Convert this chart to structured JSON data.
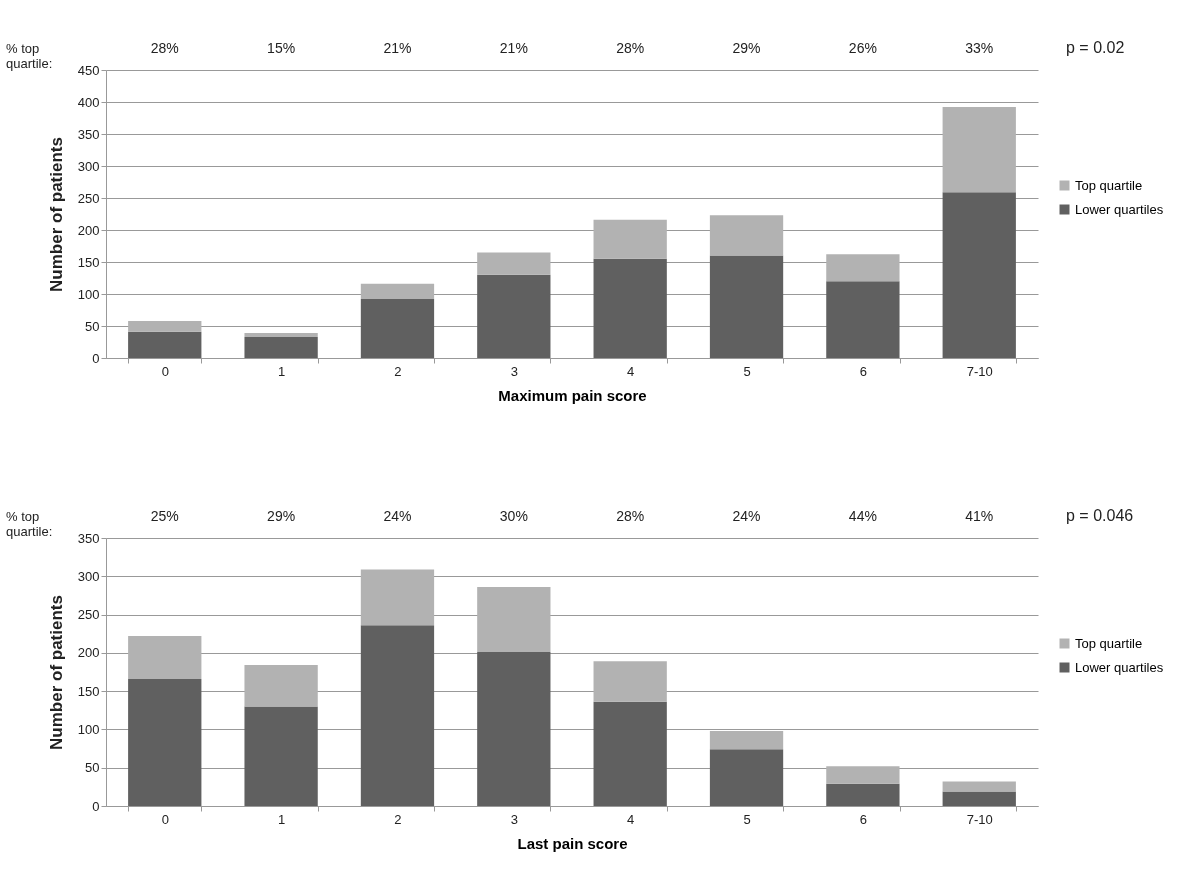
{
  "chart_data": [
    {
      "type": "bar",
      "stacked": true,
      "xlabel": "Maximum pain score",
      "ylabel": "Number of patients",
      "categories": [
        "0",
        "1",
        "2",
        "3",
        "4",
        "5",
        "6",
        "7-10"
      ],
      "series": [
        {
          "name": "Lower quartiles",
          "color": "#606060",
          "values": [
            41,
            33,
            92,
            130,
            155,
            160,
            120,
            259
          ]
        },
        {
          "name": "Top quartile",
          "color": "#b2b2b2",
          "values": [
            17,
            6,
            24,
            35,
            61,
            63,
            42,
            133
          ]
        }
      ],
      "ylim": [
        0,
        450
      ],
      "yticks": [
        0,
        50,
        100,
        150,
        200,
        250,
        300,
        350,
        400,
        450
      ],
      "grid": "y",
      "legend": "right",
      "annotations": [
        "% top\nquartile:",
        "28%",
        "15%",
        "21%",
        "21%",
        "28%",
        "29%",
        "26%",
        "33%",
        "p = 0.02"
      ]
    },
    {
      "type": "bar",
      "stacked": true,
      "xlabel": "Last pain score",
      "ylabel": "Number of patients",
      "categories": [
        "0",
        "1",
        "2",
        "3",
        "4",
        "5",
        "6",
        "7-10"
      ],
      "series": [
        {
          "name": "Lower quartiles",
          "color": "#606060",
          "values": [
            166,
            130,
            236,
            201,
            136,
            74,
            29,
            19
          ]
        },
        {
          "name": "Top quartile",
          "color": "#b2b2b2",
          "values": [
            56,
            54,
            73,
            85,
            53,
            24,
            23,
            13
          ]
        }
      ],
      "ylim": [
        0,
        350
      ],
      "yticks": [
        0,
        50,
        100,
        150,
        200,
        250,
        300,
        350
      ],
      "grid": "y",
      "legend": "right",
      "annotations": [
        "% top\nquartile:",
        "25%",
        "29%",
        "24%",
        "30%",
        "28%",
        "24%",
        "44%",
        "41%",
        "p = 0.046"
      ]
    }
  ]
}
